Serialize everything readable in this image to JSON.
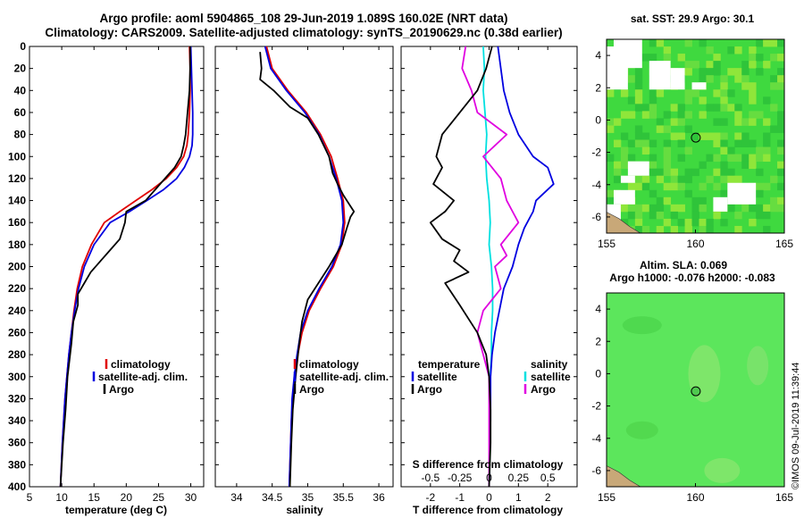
{
  "title": {
    "line1": "Argo profile: aoml 5904865_108 29-Jun-2019 1.089S 160.02E (NRT data)",
    "line2": "Climatology: CARS2009. Satellite-adjusted climatology: synTS_20190629.nc (0.38d earlier)"
  },
  "colors": {
    "climatology": "#e00000",
    "satellite": "#0000e0",
    "argo": "#000000",
    "salinity_diff": "#e000e0",
    "salinity_satellite": "#00e0e0",
    "ocean_green": "#3fd93f",
    "sla_green": "#5ce65c",
    "land": "#c8a878"
  },
  "chart_data": [
    {
      "type": "line",
      "id": "temperature",
      "xlabel": "temperature (deg C)",
      "ylabel": "",
      "xlim": [
        5,
        32
      ],
      "ylim": [
        400,
        0
      ],
      "xticks": [
        5,
        10,
        15,
        20,
        25,
        30
      ],
      "yticks": [
        0,
        20,
        40,
        60,
        80,
        100,
        120,
        140,
        160,
        180,
        200,
        220,
        240,
        260,
        280,
        300,
        320,
        340,
        360,
        380,
        400
      ],
      "legend": [
        "climatology",
        "satellite-adj. clim.",
        "Argo"
      ],
      "series": [
        {
          "name": "climatology",
          "color": "#e00000",
          "x": [
            29.8,
            29.9,
            29.9,
            29.8,
            29.6,
            29.4,
            28.9,
            27.8,
            26.2,
            24.0,
            21.5,
            19.0,
            16.6,
            14.6,
            13.2,
            12.4,
            11.9,
            11.5,
            11.1,
            10.8,
            10.5,
            10.3,
            10.1,
            9.8
          ],
          "y": [
            0,
            20,
            40,
            60,
            80,
            90,
            100,
            110,
            120,
            130,
            140,
            150,
            160,
            180,
            200,
            220,
            240,
            260,
            280,
            300,
            320,
            340,
            360,
            400
          ]
        },
        {
          "name": "satellite-adj. clim.",
          "color": "#0000e0",
          "x": [
            30.0,
            30.1,
            30.2,
            30.3,
            30.3,
            30.2,
            29.8,
            29.0,
            27.8,
            25.8,
            23.2,
            20.5,
            17.5,
            15.0,
            13.5,
            12.6,
            12.0,
            11.5,
            11.1,
            10.8,
            10.5,
            10.3,
            10.1,
            9.8
          ],
          "y": [
            0,
            20,
            40,
            60,
            80,
            90,
            100,
            110,
            120,
            130,
            140,
            150,
            160,
            180,
            200,
            220,
            240,
            260,
            280,
            300,
            320,
            340,
            360,
            400
          ]
        },
        {
          "name": "Argo",
          "color": "#000000",
          "x": [
            29.9,
            29.9,
            29.8,
            29.5,
            29.2,
            28.9,
            28.5,
            27.5,
            26.0,
            24.5,
            23.0,
            20.0,
            19.8,
            19.0,
            17.5,
            16.0,
            14.5,
            13.5,
            12.5,
            12.5,
            11.8,
            11.5,
            10.9,
            10.6,
            10.2,
            9.8
          ],
          "y": [
            0,
            20,
            40,
            60,
            80,
            90,
            100,
            110,
            120,
            130,
            140,
            150,
            160,
            175,
            185,
            195,
            205,
            215,
            225,
            235,
            250,
            270,
            300,
            330,
            360,
            400
          ]
        }
      ]
    },
    {
      "type": "line",
      "id": "salinity",
      "xlabel": "salinity",
      "ylabel": "",
      "xlim": [
        33.7,
        36.2
      ],
      "ylim": [
        400,
        0
      ],
      "xticks": [
        34,
        34.5,
        35,
        35.5,
        36
      ],
      "legend": [
        "climatology",
        "satellite-adj. clim.",
        "Argo"
      ],
      "series": [
        {
          "name": "climatology",
          "color": "#e00000",
          "x": [
            34.42,
            34.5,
            34.72,
            34.98,
            35.18,
            35.33,
            35.42,
            35.5,
            35.52,
            35.48,
            35.36,
            35.18,
            35.02,
            34.92,
            34.86,
            34.82,
            34.79,
            34.77,
            34.76,
            34.74
          ],
          "y": [
            0,
            20,
            40,
            60,
            80,
            100,
            120,
            140,
            160,
            180,
            200,
            220,
            240,
            260,
            280,
            300,
            320,
            340,
            360,
            400
          ]
        },
        {
          "name": "satellite-adj. clim.",
          "color": "#0000e0",
          "x": [
            34.4,
            34.48,
            34.7,
            34.96,
            35.16,
            35.3,
            35.4,
            35.48,
            35.5,
            35.46,
            35.34,
            35.16,
            35.0,
            34.9,
            34.85,
            34.81,
            34.78,
            34.77,
            34.76,
            34.74
          ],
          "y": [
            0,
            20,
            40,
            60,
            80,
            100,
            120,
            140,
            160,
            180,
            200,
            220,
            240,
            260,
            280,
            300,
            320,
            340,
            360,
            400
          ]
        },
        {
          "name": "Argo",
          "color": "#000000",
          "x": [
            34.33,
            34.35,
            34.33,
            34.52,
            34.75,
            35.0,
            35.15,
            35.3,
            35.35,
            35.42,
            35.5,
            35.6,
            35.65,
            35.6,
            35.55,
            35.48,
            35.3,
            35.15,
            35.0,
            34.92,
            34.88,
            34.83,
            34.79,
            34.77,
            34.75
          ],
          "y": [
            5,
            20,
            30,
            40,
            55,
            65,
            80,
            100,
            115,
            125,
            135,
            145,
            150,
            155,
            165,
            180,
            200,
            215,
            230,
            250,
            270,
            300,
            330,
            360,
            400
          ]
        }
      ]
    },
    {
      "type": "line",
      "id": "difference",
      "xlabel": "T difference from climatology",
      "title": "S difference from climatology",
      "xlim": [
        -3,
        3
      ],
      "ylim": [
        400,
        0
      ],
      "xticks": [
        -2,
        -1,
        0,
        1,
        2
      ],
      "top_ticks": [
        "-0.5",
        "-0.25",
        "0",
        "0.25",
        "0.5"
      ],
      "legend": [
        "temperature",
        "satellite",
        "Argo",
        "salinity",
        "satellite",
        "Argo"
      ],
      "series": [
        {
          "name": "T satellite",
          "color": "#0000e0",
          "x": [
            0.3,
            0.4,
            0.5,
            0.7,
            1.0,
            1.5,
            2.0,
            2.2,
            1.6,
            1.5,
            1.2,
            1.0,
            0.8,
            0.5,
            0.35,
            0.2,
            0.1,
            0.05,
            0.05,
            0.0
          ],
          "y": [
            0,
            20,
            40,
            60,
            80,
            100,
            110,
            125,
            140,
            150,
            165,
            180,
            200,
            220,
            240,
            260,
            280,
            300,
            340,
            400
          ]
        },
        {
          "name": "T Argo",
          "color": "#000000",
          "x": [
            0.1,
            -0.1,
            -0.4,
            -1.0,
            -1.6,
            -1.8,
            -1.6,
            -1.9,
            -1.2,
            -1.5,
            -2.0,
            -1.6,
            -1.0,
            -1.2,
            -0.7,
            -1.5,
            -1.0,
            -0.4,
            -0.1,
            0.0,
            0.05,
            0.05,
            0.0
          ],
          "y": [
            0,
            20,
            40,
            60,
            80,
            100,
            110,
            125,
            140,
            150,
            160,
            175,
            185,
            195,
            205,
            215,
            235,
            260,
            280,
            300,
            330,
            360,
            400
          ]
        },
        {
          "name": "S satellite",
          "color": "#00e0e0",
          "x": [
            -0.05,
            -0.04,
            -0.05,
            -0.02,
            -0.03,
            -0.02,
            0.0,
            0.01,
            0.0,
            0.02,
            0.03,
            0.03,
            0.02,
            0.02,
            0.01,
            0.01,
            0.0
          ],
          "y": [
            0,
            20,
            40,
            80,
            100,
            120,
            140,
            160,
            180,
            200,
            220,
            240,
            260,
            280,
            300,
            350,
            400
          ]
        },
        {
          "name": "S Argo",
          "color": "#e000e0",
          "x": [
            -0.2,
            -0.23,
            -0.15,
            -0.1,
            0.15,
            -0.05,
            0.1,
            0.15,
            0.2,
            0.25,
            0.1,
            0.15,
            0.05,
            0.1,
            -0.05,
            -0.1,
            -0.05,
            0.0,
            0.0,
            0.0
          ],
          "y": [
            0,
            20,
            40,
            60,
            80,
            100,
            120,
            140,
            150,
            160,
            180,
            190,
            200,
            220,
            240,
            260,
            280,
            300,
            340,
            400
          ]
        }
      ]
    },
    {
      "type": "heatmap",
      "id": "sst_map",
      "title": "sat. SST: 29.9 Argo: 30.1",
      "xlim": [
        155,
        165
      ],
      "ylim": [
        -7,
        5
      ],
      "xticks": [
        155,
        160,
        165
      ],
      "yticks": [
        4,
        2,
        0,
        -2,
        -4,
        -6
      ],
      "marker": {
        "lon": 160.02,
        "lat": -1.089
      }
    },
    {
      "type": "heatmap",
      "id": "sla_map",
      "title": "Altim. SLA: 0.069",
      "subtitle": "Argo h1000: -0.076 h2000: -0.083",
      "xlim": [
        155,
        165
      ],
      "ylim": [
        -7,
        5
      ],
      "xticks": [
        155,
        160,
        165
      ],
      "yticks": [
        4,
        2,
        0,
        -2,
        -4,
        -6
      ],
      "marker": {
        "lon": 160.02,
        "lat": -1.089
      }
    }
  ],
  "watermark": "©IMOS 09-Jul-2019 11:39:44"
}
